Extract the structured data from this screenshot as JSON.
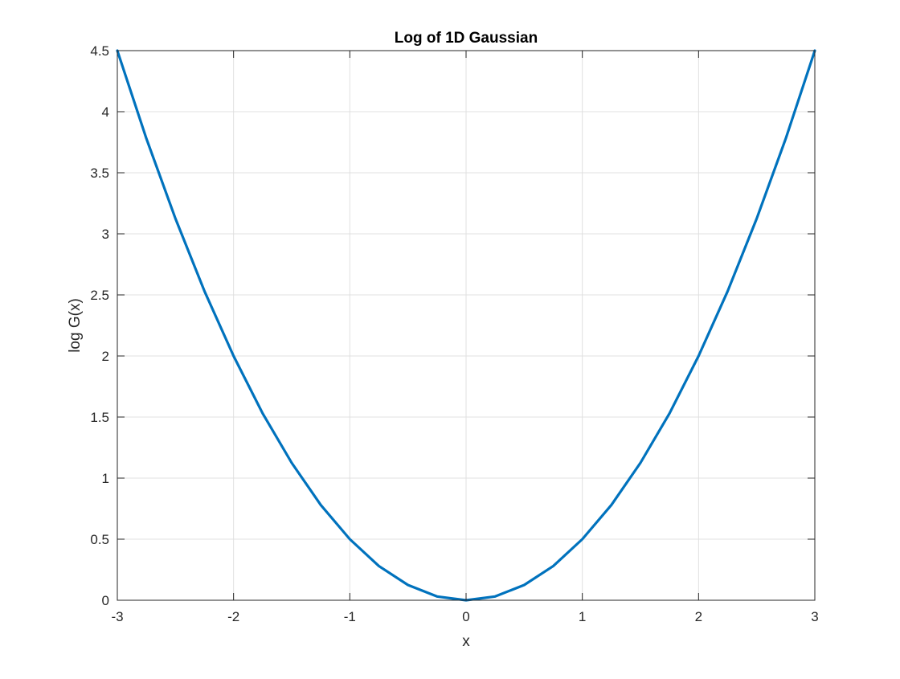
{
  "chart_data": {
    "type": "line",
    "title": "Log of 1D Gaussian",
    "xlabel": "x",
    "ylabel": "log G(x)",
    "xlim": [
      -3,
      3
    ],
    "ylim": [
      0,
      4.5
    ],
    "grid": true,
    "legend": "none",
    "xticks": [
      -3,
      -2,
      -1,
      0,
      1,
      2,
      3
    ],
    "yticks": [
      0,
      0.5,
      1,
      1.5,
      2,
      2.5,
      3,
      3.5,
      4,
      4.5
    ],
    "xtick_labels": [
      "-3",
      "-2",
      "-1",
      "0",
      "1",
      "2",
      "3"
    ],
    "ytick_labels": [
      "0",
      "0.5",
      "1",
      "1.5",
      "2",
      "2.5",
      "3",
      "3.5",
      "4",
      "4.5"
    ],
    "series": [
      {
        "color": "#0072BD",
        "x": [
          -3,
          -2.75,
          -2.5,
          -2.25,
          -2,
          -1.75,
          -1.5,
          -1.25,
          -1,
          -0.75,
          -0.5,
          -0.25,
          0,
          0.25,
          0.5,
          0.75,
          1,
          1.25,
          1.5,
          1.75,
          2,
          2.25,
          2.5,
          2.75,
          3
        ],
        "y": [
          4.5,
          3.78,
          3.125,
          2.53,
          2,
          1.53,
          1.125,
          0.78,
          0.5,
          0.28,
          0.125,
          0.031,
          0,
          0.031,
          0.125,
          0.28,
          0.5,
          0.78,
          1.125,
          1.53,
          2,
          2.53,
          3.125,
          3.78,
          4.5
        ]
      }
    ]
  },
  "colors": {
    "line": "#0072BD",
    "grid": "#e0e0e0",
    "axis": "#262626"
  }
}
